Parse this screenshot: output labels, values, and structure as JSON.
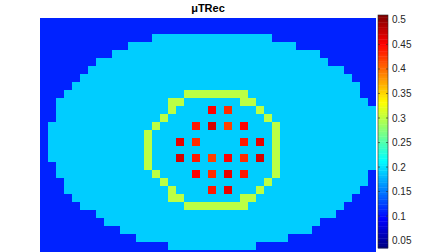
{
  "chart_data": {
    "type": "heatmap",
    "title": "μTRec",
    "tick_labels": false,
    "clim": [
      0.035,
      0.51
    ],
    "cticks": [
      0.05,
      0.1,
      0.15,
      0.2,
      0.25,
      0.3,
      0.35,
      0.4,
      0.45,
      0.5
    ],
    "cells": [
      [
        0.11,
        0.11,
        0.11,
        0.11,
        0.11,
        0.11,
        0.11,
        0.11,
        0.11,
        0.11,
        0.11,
        0.11,
        0.11,
        0.11,
        0.11,
        0.11,
        0.11,
        0.11,
        0.11,
        0.11,
        0.11,
        0.11,
        0.11,
        0.11,
        0.11,
        0.11,
        0.11,
        0.11,
        0.11,
        0.11,
        0.11,
        0.11,
        0.11,
        0.11,
        0.11,
        0.11,
        0.11,
        0.11,
        0.11,
        0.11,
        0.11,
        0.11
      ],
      [
        0.11,
        0.11,
        0.11,
        0.11,
        0.11,
        0.11,
        0.11,
        0.11,
        0.11,
        0.11,
        0.11,
        0.11,
        0.11,
        0.11,
        0.11,
        0.11,
        0.11,
        0.11,
        0.11,
        0.11,
        0.11,
        0.11,
        0.11,
        0.11,
        0.11,
        0.11,
        0.11,
        0.11,
        0.11,
        0.11,
        0.11,
        0.11,
        0.11,
        0.11,
        0.11,
        0.11,
        0.11,
        0.11,
        0.11,
        0.11,
        0.11,
        0.11
      ],
      [
        0.11,
        0.11,
        0.11,
        0.11,
        0.11,
        0.11,
        0.11,
        0.11,
        0.11,
        0.11,
        0.11,
        0.11,
        0.11,
        0.11,
        0.19,
        0.19,
        0.19,
        0.19,
        0.19,
        0.19,
        0.19,
        0.19,
        0.19,
        0.19,
        0.19,
        0.19,
        0.19,
        0.19,
        0.19,
        0.11,
        0.11,
        0.11,
        0.11,
        0.11,
        0.11,
        0.11,
        0.11,
        0.11,
        0.11,
        0.11,
        0.11,
        0.11
      ],
      [
        0.11,
        0.11,
        0.11,
        0.11,
        0.11,
        0.11,
        0.11,
        0.11,
        0.11,
        0.11,
        0.11,
        0.19,
        0.19,
        0.19,
        0.19,
        0.19,
        0.19,
        0.19,
        0.19,
        0.19,
        0.19,
        0.19,
        0.19,
        0.19,
        0.19,
        0.19,
        0.19,
        0.19,
        0.19,
        0.19,
        0.19,
        0.19,
        0.11,
        0.11,
        0.11,
        0.11,
        0.11,
        0.11,
        0.11,
        0.11,
        0.11,
        0.11
      ],
      [
        0.11,
        0.11,
        0.11,
        0.11,
        0.11,
        0.11,
        0.11,
        0.11,
        0.11,
        0.19,
        0.19,
        0.19,
        0.19,
        0.19,
        0.19,
        0.19,
        0.19,
        0.19,
        0.19,
        0.19,
        0.19,
        0.19,
        0.19,
        0.19,
        0.19,
        0.19,
        0.19,
        0.19,
        0.19,
        0.19,
        0.19,
        0.19,
        0.19,
        0.19,
        0.19,
        0.11,
        0.11,
        0.11,
        0.11,
        0.11,
        0.11,
        0.11
      ],
      [
        0.11,
        0.11,
        0.11,
        0.11,
        0.11,
        0.11,
        0.11,
        0.19,
        0.19,
        0.19,
        0.19,
        0.19,
        0.19,
        0.19,
        0.19,
        0.19,
        0.19,
        0.19,
        0.19,
        0.19,
        0.19,
        0.19,
        0.19,
        0.19,
        0.19,
        0.19,
        0.19,
        0.19,
        0.19,
        0.19,
        0.19,
        0.19,
        0.19,
        0.19,
        0.19,
        0.19,
        0.11,
        0.11,
        0.11,
        0.11,
        0.11,
        0.11
      ],
      [
        0.11,
        0.11,
        0.11,
        0.11,
        0.11,
        0.11,
        0.19,
        0.19,
        0.19,
        0.19,
        0.19,
        0.19,
        0.19,
        0.19,
        0.19,
        0.19,
        0.19,
        0.19,
        0.19,
        0.19,
        0.19,
        0.19,
        0.19,
        0.19,
        0.19,
        0.19,
        0.19,
        0.19,
        0.19,
        0.19,
        0.19,
        0.19,
        0.19,
        0.19,
        0.19,
        0.19,
        0.19,
        0.19,
        0.11,
        0.11,
        0.11,
        0.11
      ],
      [
        0.11,
        0.11,
        0.11,
        0.11,
        0.11,
        0.19,
        0.19,
        0.19,
        0.19,
        0.19,
        0.19,
        0.19,
        0.19,
        0.19,
        0.19,
        0.19,
        0.19,
        0.19,
        0.19,
        0.19,
        0.19,
        0.19,
        0.19,
        0.19,
        0.19,
        0.19,
        0.19,
        0.19,
        0.19,
        0.19,
        0.19,
        0.19,
        0.19,
        0.19,
        0.19,
        0.19,
        0.19,
        0.19,
        0.19,
        0.11,
        0.11,
        0.11
      ],
      [
        0.11,
        0.11,
        0.11,
        0.11,
        0.19,
        0.19,
        0.19,
        0.19,
        0.19,
        0.19,
        0.19,
        0.19,
        0.19,
        0.19,
        0.19,
        0.19,
        0.19,
        0.19,
        0.19,
        0.19,
        0.19,
        0.19,
        0.19,
        0.19,
        0.19,
        0.19,
        0.19,
        0.19,
        0.19,
        0.19,
        0.19,
        0.19,
        0.19,
        0.19,
        0.19,
        0.19,
        0.19,
        0.19,
        0.19,
        0.19,
        0.11,
        0.11
      ],
      [
        0.11,
        0.11,
        0.11,
        0.19,
        0.19,
        0.19,
        0.19,
        0.19,
        0.19,
        0.19,
        0.19,
        0.19,
        0.19,
        0.19,
        0.19,
        0.19,
        0.19,
        0.19,
        0.3,
        0.3,
        0.3,
        0.3,
        0.3,
        0.3,
        0.3,
        0.3,
        0.19,
        0.19,
        0.19,
        0.19,
        0.19,
        0.19,
        0.19,
        0.19,
        0.19,
        0.19,
        0.19,
        0.19,
        0.19,
        0.19,
        0.11,
        0.11
      ],
      [
        0.11,
        0.11,
        0.19,
        0.19,
        0.19,
        0.19,
        0.19,
        0.19,
        0.19,
        0.19,
        0.19,
        0.19,
        0.19,
        0.19,
        0.19,
        0.19,
        0.3,
        0.3,
        0.19,
        0.19,
        0.19,
        0.19,
        0.19,
        0.19,
        0.19,
        0.3,
        0.3,
        0.19,
        0.19,
        0.19,
        0.19,
        0.19,
        0.19,
        0.19,
        0.19,
        0.19,
        0.19,
        0.19,
        0.19,
        0.19,
        0.19,
        0.11
      ],
      [
        0.11,
        0.11,
        0.19,
        0.19,
        0.19,
        0.19,
        0.19,
        0.19,
        0.19,
        0.19,
        0.19,
        0.19,
        0.19,
        0.19,
        0.19,
        0.19,
        0.3,
        0.19,
        0.19,
        0.19,
        0.19,
        0.45,
        0.19,
        0.43,
        0.19,
        0.19,
        0.19,
        0.3,
        0.19,
        0.19,
        0.19,
        0.19,
        0.19,
        0.19,
        0.19,
        0.19,
        0.19,
        0.19,
        0.19,
        0.19,
        0.19,
        0.19
      ],
      [
        0.11,
        0.11,
        0.19,
        0.19,
        0.19,
        0.19,
        0.19,
        0.19,
        0.19,
        0.19,
        0.19,
        0.19,
        0.19,
        0.19,
        0.19,
        0.3,
        0.19,
        0.19,
        0.19,
        0.19,
        0.19,
        0.19,
        0.19,
        0.19,
        0.19,
        0.19,
        0.19,
        0.19,
        0.3,
        0.19,
        0.19,
        0.19,
        0.19,
        0.19,
        0.19,
        0.19,
        0.19,
        0.19,
        0.19,
        0.19,
        0.19,
        0.19
      ],
      [
        0.11,
        0.19,
        0.19,
        0.19,
        0.19,
        0.19,
        0.19,
        0.19,
        0.19,
        0.19,
        0.19,
        0.19,
        0.19,
        0.19,
        0.3,
        0.19,
        0.19,
        0.19,
        0.19,
        0.44,
        0.19,
        0.47,
        0.19,
        0.42,
        0.19,
        0.45,
        0.19,
        0.19,
        0.19,
        0.3,
        0.19,
        0.19,
        0.19,
        0.19,
        0.19,
        0.19,
        0.19,
        0.19,
        0.19,
        0.19,
        0.19,
        0.19
      ],
      [
        0.11,
        0.19,
        0.19,
        0.19,
        0.19,
        0.19,
        0.19,
        0.19,
        0.19,
        0.19,
        0.19,
        0.19,
        0.19,
        0.3,
        0.19,
        0.19,
        0.19,
        0.19,
        0.19,
        0.19,
        0.19,
        0.19,
        0.19,
        0.19,
        0.19,
        0.19,
        0.19,
        0.19,
        0.19,
        0.3,
        0.19,
        0.19,
        0.19,
        0.19,
        0.19,
        0.19,
        0.19,
        0.19,
        0.19,
        0.19,
        0.19,
        0.19
      ],
      [
        0.11,
        0.19,
        0.19,
        0.19,
        0.19,
        0.19,
        0.19,
        0.19,
        0.19,
        0.19,
        0.19,
        0.19,
        0.19,
        0.3,
        0.19,
        0.19,
        0.19,
        0.46,
        0.19,
        0.43,
        0.19,
        0.19,
        0.19,
        0.19,
        0.19,
        0.44,
        0.19,
        0.46,
        0.19,
        0.3,
        0.19,
        0.19,
        0.19,
        0.19,
        0.19,
        0.19,
        0.19,
        0.19,
        0.19,
        0.19,
        0.19,
        0.19
      ],
      [
        0.11,
        0.19,
        0.19,
        0.19,
        0.19,
        0.19,
        0.19,
        0.19,
        0.19,
        0.19,
        0.19,
        0.19,
        0.19,
        0.3,
        0.19,
        0.19,
        0.19,
        0.19,
        0.19,
        0.19,
        0.19,
        0.19,
        0.19,
        0.19,
        0.19,
        0.19,
        0.19,
        0.19,
        0.19,
        0.3,
        0.19,
        0.19,
        0.19,
        0.19,
        0.19,
        0.19,
        0.19,
        0.19,
        0.19,
        0.19,
        0.19,
        0.19
      ],
      [
        0.11,
        0.19,
        0.19,
        0.19,
        0.19,
        0.19,
        0.19,
        0.19,
        0.19,
        0.19,
        0.19,
        0.19,
        0.19,
        0.3,
        0.19,
        0.19,
        0.19,
        0.47,
        0.19,
        0.44,
        0.19,
        0.42,
        0.19,
        0.45,
        0.19,
        0.43,
        0.19,
        0.47,
        0.19,
        0.3,
        0.19,
        0.19,
        0.19,
        0.19,
        0.19,
        0.19,
        0.19,
        0.19,
        0.19,
        0.19,
        0.19,
        0.19
      ],
      [
        0.11,
        0.11,
        0.19,
        0.19,
        0.19,
        0.19,
        0.19,
        0.19,
        0.19,
        0.19,
        0.19,
        0.19,
        0.19,
        0.3,
        0.19,
        0.19,
        0.19,
        0.19,
        0.19,
        0.19,
        0.19,
        0.19,
        0.19,
        0.19,
        0.19,
        0.19,
        0.19,
        0.19,
        0.19,
        0.3,
        0.19,
        0.19,
        0.19,
        0.19,
        0.19,
        0.19,
        0.19,
        0.19,
        0.19,
        0.19,
        0.19,
        0.19
      ],
      [
        0.11,
        0.11,
        0.19,
        0.19,
        0.19,
        0.19,
        0.19,
        0.19,
        0.19,
        0.19,
        0.19,
        0.19,
        0.19,
        0.19,
        0.3,
        0.19,
        0.19,
        0.19,
        0.19,
        0.45,
        0.19,
        0.43,
        0.19,
        0.46,
        0.19,
        0.44,
        0.19,
        0.19,
        0.19,
        0.3,
        0.19,
        0.19,
        0.19,
        0.19,
        0.19,
        0.19,
        0.19,
        0.19,
        0.19,
        0.19,
        0.19,
        0.11
      ],
      [
        0.11,
        0.11,
        0.11,
        0.19,
        0.19,
        0.19,
        0.19,
        0.19,
        0.19,
        0.19,
        0.19,
        0.19,
        0.19,
        0.19,
        0.19,
        0.3,
        0.19,
        0.19,
        0.19,
        0.19,
        0.19,
        0.19,
        0.19,
        0.19,
        0.19,
        0.19,
        0.19,
        0.19,
        0.3,
        0.19,
        0.19,
        0.19,
        0.19,
        0.19,
        0.19,
        0.19,
        0.19,
        0.19,
        0.19,
        0.19,
        0.19,
        0.11
      ],
      [
        0.11,
        0.11,
        0.11,
        0.19,
        0.19,
        0.19,
        0.19,
        0.19,
        0.19,
        0.19,
        0.19,
        0.19,
        0.19,
        0.19,
        0.19,
        0.19,
        0.3,
        0.19,
        0.19,
        0.19,
        0.19,
        0.44,
        0.19,
        0.46,
        0.19,
        0.19,
        0.19,
        0.3,
        0.19,
        0.19,
        0.19,
        0.19,
        0.19,
        0.19,
        0.19,
        0.19,
        0.19,
        0.19,
        0.19,
        0.19,
        0.11,
        0.11
      ],
      [
        0.11,
        0.11,
        0.11,
        0.11,
        0.19,
        0.19,
        0.19,
        0.19,
        0.19,
        0.19,
        0.19,
        0.19,
        0.19,
        0.19,
        0.19,
        0.19,
        0.3,
        0.3,
        0.19,
        0.19,
        0.19,
        0.19,
        0.19,
        0.19,
        0.19,
        0.3,
        0.3,
        0.19,
        0.19,
        0.19,
        0.19,
        0.19,
        0.19,
        0.19,
        0.19,
        0.19,
        0.19,
        0.19,
        0.19,
        0.11,
        0.11,
        0.11
      ],
      [
        0.11,
        0.11,
        0.11,
        0.11,
        0.11,
        0.19,
        0.19,
        0.19,
        0.19,
        0.19,
        0.19,
        0.19,
        0.19,
        0.19,
        0.19,
        0.19,
        0.19,
        0.19,
        0.3,
        0.3,
        0.3,
        0.3,
        0.3,
        0.3,
        0.3,
        0.3,
        0.19,
        0.19,
        0.19,
        0.19,
        0.19,
        0.19,
        0.19,
        0.19,
        0.19,
        0.19,
        0.19,
        0.19,
        0.11,
        0.11,
        0.11,
        0.11
      ],
      [
        0.11,
        0.11,
        0.11,
        0.11,
        0.11,
        0.11,
        0.11,
        0.19,
        0.19,
        0.19,
        0.19,
        0.19,
        0.19,
        0.19,
        0.19,
        0.19,
        0.19,
        0.19,
        0.19,
        0.19,
        0.19,
        0.19,
        0.19,
        0.19,
        0.19,
        0.19,
        0.19,
        0.19,
        0.19,
        0.19,
        0.19,
        0.19,
        0.19,
        0.19,
        0.19,
        0.19,
        0.19,
        0.11,
        0.11,
        0.11,
        0.11,
        0.11
      ],
      [
        0.11,
        0.11,
        0.11,
        0.11,
        0.11,
        0.11,
        0.11,
        0.11,
        0.19,
        0.19,
        0.19,
        0.19,
        0.19,
        0.19,
        0.19,
        0.19,
        0.19,
        0.19,
        0.19,
        0.19,
        0.19,
        0.19,
        0.19,
        0.19,
        0.19,
        0.19,
        0.19,
        0.19,
        0.19,
        0.19,
        0.19,
        0.19,
        0.19,
        0.19,
        0.19,
        0.11,
        0.11,
        0.11,
        0.11,
        0.11,
        0.11,
        0.11
      ],
      [
        0.11,
        0.11,
        0.11,
        0.11,
        0.11,
        0.11,
        0.11,
        0.11,
        0.11,
        0.11,
        0.19,
        0.19,
        0.19,
        0.19,
        0.19,
        0.19,
        0.19,
        0.19,
        0.19,
        0.19,
        0.19,
        0.19,
        0.19,
        0.19,
        0.19,
        0.19,
        0.19,
        0.19,
        0.19,
        0.19,
        0.19,
        0.19,
        0.19,
        0.19,
        0.11,
        0.11,
        0.11,
        0.11,
        0.11,
        0.11,
        0.11,
        0.11
      ],
      [
        0.11,
        0.11,
        0.11,
        0.11,
        0.11,
        0.11,
        0.11,
        0.11,
        0.11,
        0.11,
        0.11,
        0.11,
        0.19,
        0.19,
        0.19,
        0.19,
        0.19,
        0.19,
        0.19,
        0.19,
        0.19,
        0.19,
        0.19,
        0.19,
        0.19,
        0.19,
        0.19,
        0.19,
        0.19,
        0.19,
        0.19,
        0.11,
        0.11,
        0.11,
        0.11,
        0.11,
        0.11,
        0.11,
        0.11,
        0.11,
        0.11,
        0.11
      ],
      [
        0.11,
        0.11,
        0.11,
        0.11,
        0.11,
        0.11,
        0.11,
        0.11,
        0.11,
        0.11,
        0.11,
        0.11,
        0.11,
        0.11,
        0.11,
        0.11,
        0.19,
        0.19,
        0.19,
        0.19,
        0.19,
        0.19,
        0.19,
        0.19,
        0.19,
        0.19,
        0.19,
        0.11,
        0.11,
        0.11,
        0.11,
        0.11,
        0.11,
        0.11,
        0.11,
        0.11,
        0.11,
        0.11,
        0.11,
        0.11,
        0.11,
        0.11
      ],
      [
        0.11,
        0.11,
        0.11,
        0.11,
        0.11,
        0.11,
        0.11,
        0.11,
        0.11,
        0.11,
        0.11,
        0.11,
        0.11,
        0.11,
        0.11,
        0.11,
        0.11,
        0.11,
        0.11,
        0.11,
        0.11,
        0.11,
        0.11,
        0.11,
        0.11,
        0.11,
        0.11,
        0.11,
        0.11,
        0.11,
        0.11,
        0.11,
        0.11,
        0.11,
        0.11,
        0.11,
        0.11,
        0.11,
        0.11,
        0.11,
        0.11,
        0.11
      ]
    ]
  }
}
